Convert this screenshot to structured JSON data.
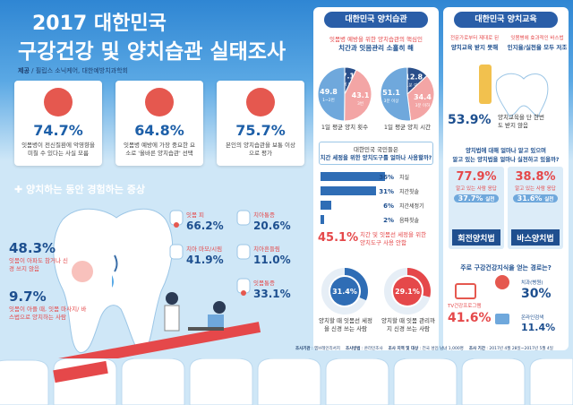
{
  "header": {
    "title_year": "2017 대한민국",
    "title": "구강건강 및 양치습관 실태조사",
    "source_label": "제공",
    "source": "필립스 소닉케어, 대한예방치과학회"
  },
  "stats": [
    {
      "value": "74.7%",
      "text": "잇몸병이 전신질환에 악영향을 미칠 수 있다는 사실 모름"
    },
    {
      "value": "64.8%",
      "text": "잇몸병 예방에 가장 중요한 요소로 '올바른 양치습관' 선택"
    },
    {
      "value": "75.7%",
      "text": "본인의 양치습관을 보통 이상으로 평가"
    }
  ],
  "symptoms": {
    "title": "양치하는 동안 경험하는 증상",
    "highlights": [
      {
        "value": "48.3%",
        "text": "잇몸이 아파도 참거나 신경 쓰지 않음"
      },
      {
        "value": "9.7%",
        "text": "잇몸이 아플 때, 잇몸 마사지/ 바스법으로 양치하는 사람"
      }
    ],
    "items": [
      {
        "label": "잇몸 피",
        "value": "66.2%"
      },
      {
        "label": "치아통증",
        "value": "20.6%"
      },
      {
        "label": "치아 마모/시림",
        "value": "41.9%"
      },
      {
        "label": "치아흔들림",
        "value": "11.0%"
      },
      {
        "label": "잇몸통증",
        "value": "33.1%"
      }
    ]
  },
  "habits": {
    "title": "대한민국 양치습관",
    "subtitle": [
      "잇몸병 예방을 위한 양치습관의 핵심인",
      "치간과 잇몸관리 소홀히 해"
    ],
    "pies": [
      {
        "caption": "1일 평균 양치 횟수",
        "slices": [
          {
            "value": "7.1",
            "label": "4회 이상"
          },
          {
            "value": "43.1",
            "label": "3번"
          },
          {
            "value": "49.8",
            "label": "1~2번"
          }
        ]
      },
      {
        "caption": "1일 평균 양치 시간",
        "slices": [
          {
            "value": "12.8",
            "label": "1분 이하"
          },
          {
            "value": "34.4",
            "label": "3분 이하"
          },
          {
            "value": "51.1",
            "label": "3분 이상"
          }
        ]
      }
    ],
    "question": [
      "대한민국 국민들은",
      "치간 세정을 위한 양치도구를 얼마나 사용할까?"
    ],
    "tools": [
      {
        "value": "36%",
        "label": "치실"
      },
      {
        "value": "31%",
        "label": "치간칫솔"
      },
      {
        "value": "6%",
        "label": "치간세정기"
      },
      {
        "value": "2%",
        "label": "음파칫솔"
      }
    ],
    "no_tool": {
      "value": "45.1%",
      "text": "치간 및 잇몸선 세정을 위한 양치도구 사용 안함"
    },
    "donuts": [
      {
        "value": "31.4%",
        "text": "양치할 때 잇몸선 세정을 신경 쓰는 사람"
      },
      {
        "value": "29.1%",
        "text": "양치할 때 잇몸 관리까지 신경 쓰는 사람"
      }
    ]
  },
  "education": {
    "title": "대한민국 양치교육",
    "subtitles": [
      [
        "전문가로부터 제대로 된",
        "양치교육 받지 못해"
      ],
      [
        "잇몸병에 효과적인 바스법",
        "인지율/실천율 모두 저조"
      ]
    ],
    "never": {
      "value": "53.9%",
      "text": "양치교육을 단 한번도 받지 않음"
    },
    "question": [
      "양치법에 대해 얼마나 알고 있으며",
      "알고 있는 양치법을 얼마나 실천하고 있을까?"
    ],
    "methods": [
      {
        "known": "77.9%",
        "known_label": "알고 있는 사람 응답",
        "practice": "37.7%",
        "practice_label": "실천",
        "name": "회전양치법"
      },
      {
        "known": "38.8%",
        "known_label": "알고 있는 사람 응답",
        "practice": "31.6%",
        "practice_label": "실천",
        "name": "바스양치법"
      }
    ],
    "channels_title": "주로 구강건강지식을 얻는 경로는?",
    "channels": [
      {
        "label": "TV건강프로그램",
        "value": "41.6%"
      },
      {
        "label": "치과(병원)",
        "value": "30%"
      },
      {
        "label": "온라인검색",
        "value": "11.4%"
      }
    ]
  },
  "footer": [
    {
      "label": "조사기관",
      "text": "엠브레인리서치"
    },
    {
      "label": "조사방법",
      "text": "온라인조사"
    },
    {
      "label": "조사 지역 및 대상",
      "text": "전국 성인 남녀 1,000명"
    },
    {
      "label": "조사 기간",
      "text": "2017년 4월 28일~2017년 5월 4일"
    }
  ]
}
